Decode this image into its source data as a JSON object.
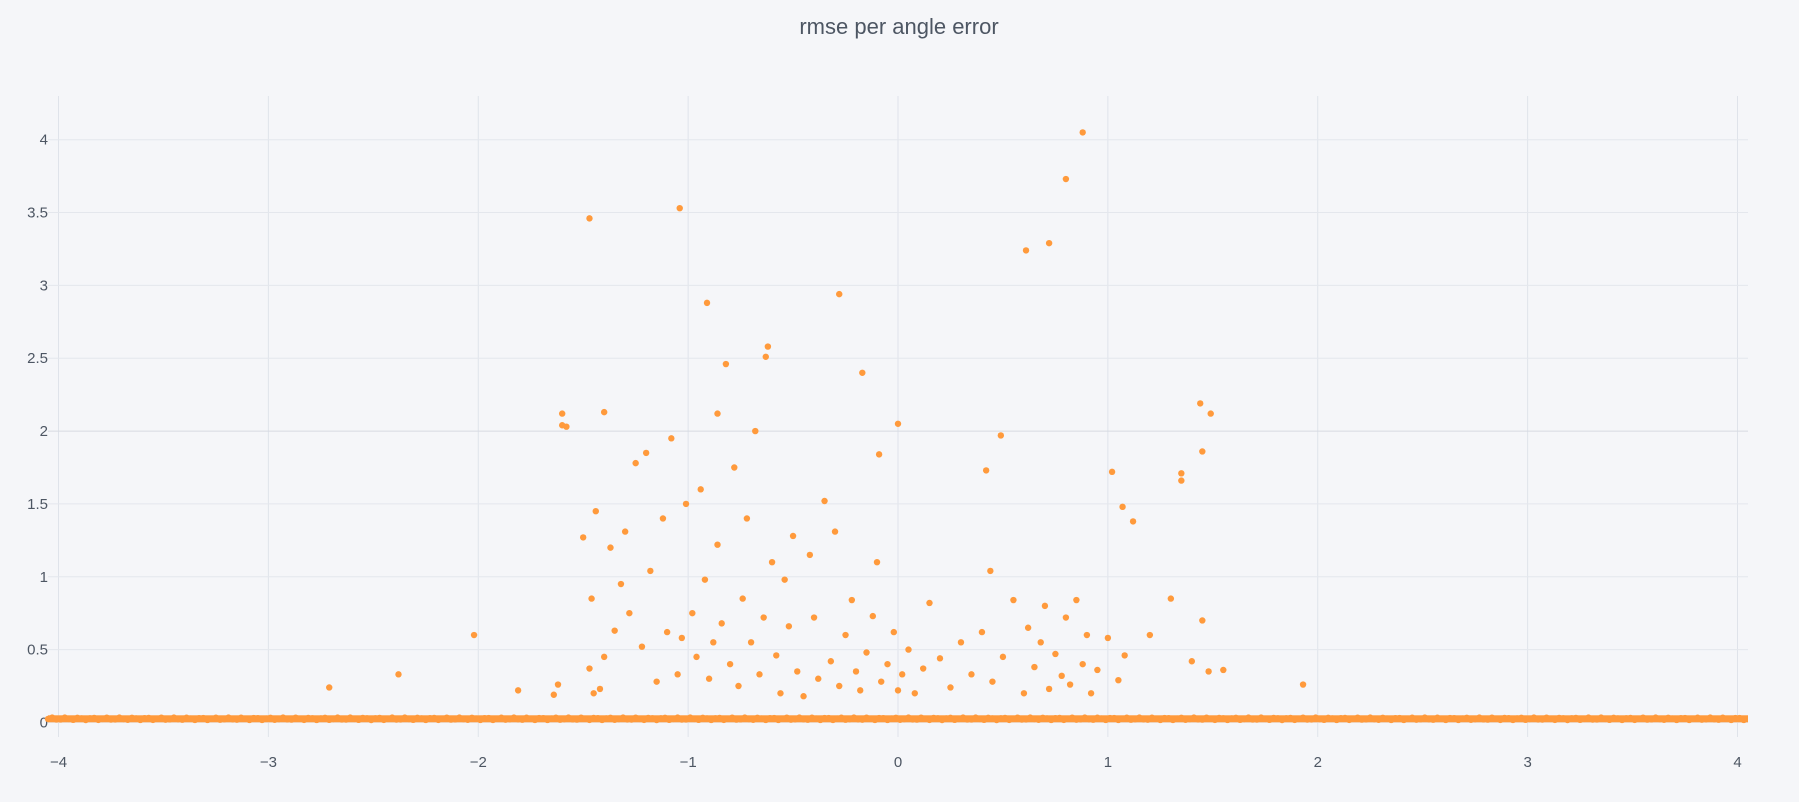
{
  "chart_data": {
    "type": "scatter",
    "title": "rmse per angle error",
    "xlabel": "",
    "ylabel": "",
    "xlim": [
      -4.05,
      4.05
    ],
    "ylim": [
      -0.1,
      4.3
    ],
    "x_ticks": [
      -4,
      -3,
      -2,
      -1,
      0,
      1,
      2,
      3,
      4
    ],
    "x_tick_labels": [
      "−4",
      "−3",
      "−2",
      "−1",
      "0",
      "1",
      "2",
      "3",
      "4"
    ],
    "y_ticks": [
      0,
      0.5,
      1,
      1.5,
      2,
      2.5,
      3,
      3.5,
      4
    ],
    "y_tick_labels": [
      "0",
      "0.5",
      "1",
      "1.5",
      "2",
      "2.5",
      "3",
      "3.5",
      "4"
    ],
    "grid": true,
    "legend": "none",
    "marker_color": "#ff9a3c",
    "baseline": {
      "y": 0.025,
      "x_range": [
        -4.05,
        4.05
      ],
      "description_count": 6000
    },
    "series": [
      {
        "values_note": "outlier points above baseline",
        "x": [
          -2.71,
          -2.38,
          -2.02,
          -1.81,
          -1.64,
          -1.62,
          -1.6,
          -1.58,
          -1.5,
          -1.47,
          -1.46,
          -1.45,
          -1.44,
          -1.42,
          -1.4,
          -1.37,
          -1.35,
          -1.32,
          -1.3,
          -1.28,
          -1.25,
          -1.22,
          -1.2,
          -1.18,
          -1.15,
          -1.12,
          -1.1,
          -1.08,
          -1.05,
          -1.03,
          -1.01,
          -0.98,
          -0.96,
          -0.94,
          -0.92,
          -0.9,
          -0.88,
          -0.86,
          -0.84,
          -0.82,
          -0.8,
          -0.78,
          -0.76,
          -0.74,
          -0.72,
          -0.7,
          -0.68,
          -0.66,
          -0.64,
          -0.62,
          -0.6,
          -0.58,
          -0.56,
          -0.54,
          -0.52,
          -0.5,
          -0.48,
          -0.45,
          -0.42,
          -0.4,
          -0.38,
          -0.35,
          -0.32,
          -0.3,
          -0.28,
          -0.25,
          -0.22,
          -0.2,
          -0.18,
          -0.15,
          -0.12,
          -0.1,
          -0.08,
          -0.05,
          -0.02,
          0.0,
          0.02,
          0.05,
          0.08,
          0.12,
          0.15,
          0.2,
          0.25,
          0.3,
          0.35,
          0.4,
          0.42,
          0.45,
          0.5,
          0.55,
          0.6,
          0.62,
          0.65,
          0.68,
          0.7,
          0.72,
          0.75,
          0.78,
          0.8,
          0.82,
          0.85,
          0.88,
          0.9,
          0.92,
          0.95,
          1.0,
          1.02,
          1.05,
          1.08,
          1.12,
          1.2,
          1.3,
          1.35,
          1.4,
          1.45,
          1.48,
          1.55,
          1.93,
          -1.47,
          -1.04,
          -0.91,
          -0.28,
          0.88,
          0.8,
          0.72,
          0.61,
          -0.63,
          -0.86,
          -1.6,
          -1.4,
          -0.17,
          0.0,
          -0.09,
          1.44,
          0.49,
          0.44,
          1.35,
          1.07,
          1.45,
          1.49
        ],
        "y": [
          0.24,
          0.33,
          0.6,
          0.22,
          0.19,
          0.26,
          2.12,
          2.03,
          1.27,
          0.37,
          0.85,
          0.2,
          1.45,
          0.23,
          0.45,
          1.2,
          0.63,
          0.95,
          1.31,
          0.75,
          1.78,
          0.52,
          1.85,
          1.04,
          0.28,
          1.4,
          0.62,
          1.95,
          0.33,
          0.58,
          1.5,
          0.75,
          0.45,
          1.6,
          0.98,
          0.3,
          0.55,
          1.22,
          0.68,
          2.46,
          0.4,
          1.75,
          0.25,
          0.85,
          1.4,
          0.55,
          2.0,
          0.33,
          0.72,
          2.58,
          1.1,
          0.46,
          0.2,
          0.98,
          0.66,
          1.28,
          0.35,
          0.18,
          1.15,
          0.72,
          0.3,
          1.52,
          0.42,
          1.31,
          0.25,
          0.6,
          0.84,
          0.35,
          0.22,
          0.48,
          0.73,
          1.1,
          0.28,
          0.4,
          0.62,
          0.22,
          0.33,
          0.5,
          0.2,
          0.37,
          0.82,
          0.44,
          0.24,
          0.55,
          0.33,
          0.62,
          1.73,
          0.28,
          0.45,
          0.84,
          0.2,
          0.65,
          0.38,
          0.55,
          0.8,
          0.23,
          0.47,
          0.32,
          0.72,
          0.26,
          0.84,
          0.4,
          0.6,
          0.2,
          0.36,
          0.58,
          1.72,
          0.29,
          0.46,
          1.38,
          0.6,
          0.85,
          1.66,
          0.42,
          0.7,
          0.35,
          0.36,
          0.26,
          3.46,
          3.53,
          2.88,
          2.94,
          4.05,
          3.73,
          3.29,
          3.24,
          2.51,
          2.12,
          2.04,
          2.13,
          2.4,
          2.05,
          1.84,
          2.19,
          1.97,
          1.04,
          1.71,
          1.48,
          1.86,
          2.12
        ]
      }
    ]
  }
}
